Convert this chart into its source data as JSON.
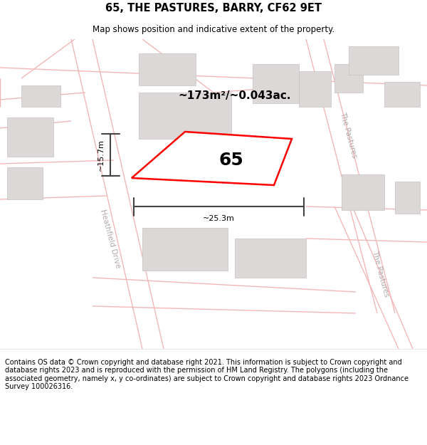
{
  "title": "65, THE PASTURES, BARRY, CF62 9ET",
  "subtitle": "Map shows position and indicative extent of the property.",
  "footer_text": "Contains OS data © Crown copyright and database right 2021. This information is subject to Crown copyright and database rights 2023 and is reproduced with the permission of HM Land Registry. The polygons (including the associated geometry, namely x, y co-ordinates) are subject to Crown copyright and database rights 2023 Ordnance Survey 100026316.",
  "map_bg": "#f7f2f2",
  "road_color": "#f2b8b8",
  "road_lw": 1.0,
  "block_color": "#ddd8d8",
  "block_edge_color": "#c8c0c0",
  "property_color": "#ff0000",
  "property_lw": 1.8,
  "dim_color": "#444444",
  "area_text": "~173m²/~0.043ac.",
  "number_text": "65",
  "dim_w_text": "~25.3m",
  "dim_h_text": "~15.7m",
  "title_fontsize": 10.5,
  "subtitle_fontsize": 8.5,
  "footer_fontsize": 7.0,
  "number_fontsize": 18,
  "area_fontsize": 11,
  "dim_fontsize": 8,
  "street_fontsize": 7.5,
  "street_color": "#b0a8a8"
}
